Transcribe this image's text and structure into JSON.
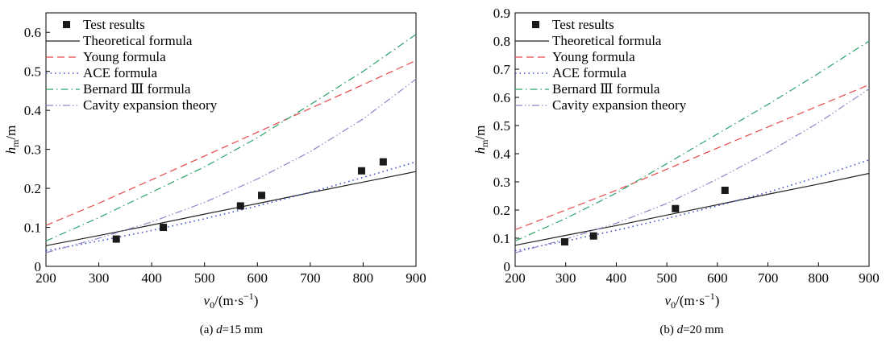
{
  "legend_labels": [
    "Test results",
    "Theoretical formula",
    "Young formula",
    "ACE formula",
    "Bernard Ⅲ formula",
    "Cavity expansion theory"
  ],
  "chart_data": [
    {
      "type": "line",
      "caption_prefix": "(a) ",
      "caption_var": "d",
      "caption_value": "=15 mm",
      "xlabel": "v0/(m·s−1)",
      "ylabel": "hm/m",
      "xlim": [
        200,
        900
      ],
      "ylim": [
        0,
        0.65
      ],
      "xticks": [
        200,
        300,
        400,
        500,
        600,
        700,
        800,
        900
      ],
      "yticks": [
        0,
        0.1,
        0.2,
        0.3,
        0.4,
        0.5,
        0.6
      ],
      "legend_position": "top-left",
      "series": [
        {
          "name": "Test results",
          "kind": "scatter",
          "color": "#1a1a1a",
          "points": [
            [
              333,
              0.07
            ],
            [
              422,
              0.1
            ],
            [
              568,
              0.155
            ],
            [
              608,
              0.182
            ],
            [
              797,
              0.245
            ],
            [
              838,
              0.268
            ]
          ]
        },
        {
          "name": "Theoretical formula",
          "kind": "line",
          "dash": "solid",
          "color": "#222222",
          "points": [
            [
              200,
              0.053
            ],
            [
              300,
              0.079
            ],
            [
              400,
              0.106
            ],
            [
              500,
              0.134
            ],
            [
              600,
              0.161
            ],
            [
              700,
              0.189
            ],
            [
              800,
              0.216
            ],
            [
              900,
              0.243
            ]
          ]
        },
        {
          "name": "Young formula",
          "kind": "line",
          "dash": "dash",
          "color": "#e8474a",
          "points": [
            [
              200,
              0.105
            ],
            [
              300,
              0.162
            ],
            [
              400,
              0.222
            ],
            [
              500,
              0.283
            ],
            [
              600,
              0.344
            ],
            [
              700,
              0.405
            ],
            [
              800,
              0.466
            ],
            [
              900,
              0.528
            ]
          ]
        },
        {
          "name": "ACE formula",
          "kind": "line",
          "dash": "dot",
          "color": "#3b4fc4",
          "points": [
            [
              200,
              0.04
            ],
            [
              300,
              0.065
            ],
            [
              400,
              0.092
            ],
            [
              500,
              0.122
            ],
            [
              600,
              0.155
            ],
            [
              700,
              0.19
            ],
            [
              800,
              0.228
            ],
            [
              900,
              0.268
            ]
          ]
        },
        {
          "name": "Bernard Ⅲ formula",
          "kind": "line",
          "dash": "dashdot",
          "color": "#2aa36a",
          "points": [
            [
              200,
              0.065
            ],
            [
              300,
              0.125
            ],
            [
              400,
              0.19
            ],
            [
              500,
              0.255
            ],
            [
              600,
              0.33
            ],
            [
              700,
              0.415
            ],
            [
              800,
              0.5
            ],
            [
              900,
              0.595
            ]
          ]
        },
        {
          "name": "Cavity expansion theory",
          "kind": "line",
          "dash": "dashdotdot",
          "color": "#8f86c9",
          "points": [
            [
              200,
              0.035
            ],
            [
              300,
              0.072
            ],
            [
              400,
              0.114
            ],
            [
              500,
              0.164
            ],
            [
              600,
              0.224
            ],
            [
              700,
              0.294
            ],
            [
              800,
              0.378
            ],
            [
              900,
              0.48
            ]
          ]
        }
      ]
    },
    {
      "type": "line",
      "caption_prefix": "(b) ",
      "caption_var": "d",
      "caption_value": "=20 mm",
      "xlabel": "v0/(m·s−1)",
      "ylabel": "hm/m",
      "xlim": [
        200,
        900
      ],
      "ylim": [
        0,
        0.9
      ],
      "xticks": [
        200,
        300,
        400,
        500,
        600,
        700,
        800,
        900
      ],
      "yticks": [
        0,
        0.1,
        0.2,
        0.3,
        0.4,
        0.5,
        0.6,
        0.7,
        0.8,
        0.9
      ],
      "legend_position": "top-left",
      "series": [
        {
          "name": "Test results",
          "kind": "scatter",
          "color": "#1a1a1a",
          "points": [
            [
              298,
              0.087
            ],
            [
              355,
              0.108
            ],
            [
              517,
              0.205
            ],
            [
              615,
              0.27
            ]
          ]
        },
        {
          "name": "Theoretical formula",
          "kind": "line",
          "dash": "solid",
          "color": "#222222",
          "points": [
            [
              200,
              0.075
            ],
            [
              300,
              0.11
            ],
            [
              400,
              0.145
            ],
            [
              500,
              0.182
            ],
            [
              600,
              0.219
            ],
            [
              700,
              0.256
            ],
            [
              800,
              0.292
            ],
            [
              900,
              0.33
            ]
          ]
        },
        {
          "name": "Young formula",
          "kind": "line",
          "dash": "dash",
          "color": "#e8474a",
          "points": [
            [
              200,
              0.13
            ],
            [
              300,
              0.2
            ],
            [
              400,
              0.27
            ],
            [
              500,
              0.345
            ],
            [
              600,
              0.42
            ],
            [
              700,
              0.495
            ],
            [
              800,
              0.57
            ],
            [
              900,
              0.645
            ]
          ]
        },
        {
          "name": "ACE formula",
          "kind": "line",
          "dash": "dot",
          "color": "#3b4fc4",
          "points": [
            [
              200,
              0.055
            ],
            [
              300,
              0.09
            ],
            [
              400,
              0.128
            ],
            [
              500,
              0.17
            ],
            [
              600,
              0.215
            ],
            [
              700,
              0.263
            ],
            [
              800,
              0.318
            ],
            [
              900,
              0.378
            ]
          ]
        },
        {
          "name": "Bernard Ⅲ formula",
          "kind": "line",
          "dash": "dashdot",
          "color": "#2aa36a",
          "points": [
            [
              200,
              0.09
            ],
            [
              300,
              0.17
            ],
            [
              400,
              0.26
            ],
            [
              500,
              0.365
            ],
            [
              600,
              0.47
            ],
            [
              700,
              0.575
            ],
            [
              800,
              0.685
            ],
            [
              900,
              0.8
            ]
          ]
        },
        {
          "name": "Cavity expansion theory",
          "kind": "line",
          "dash": "dashdotdot",
          "color": "#8f86c9",
          "points": [
            [
              200,
              0.048
            ],
            [
              300,
              0.097
            ],
            [
              400,
              0.153
            ],
            [
              500,
              0.223
            ],
            [
              600,
              0.31
            ],
            [
              700,
              0.405
            ],
            [
              800,
              0.51
            ],
            [
              900,
              0.63
            ]
          ]
        }
      ]
    }
  ]
}
